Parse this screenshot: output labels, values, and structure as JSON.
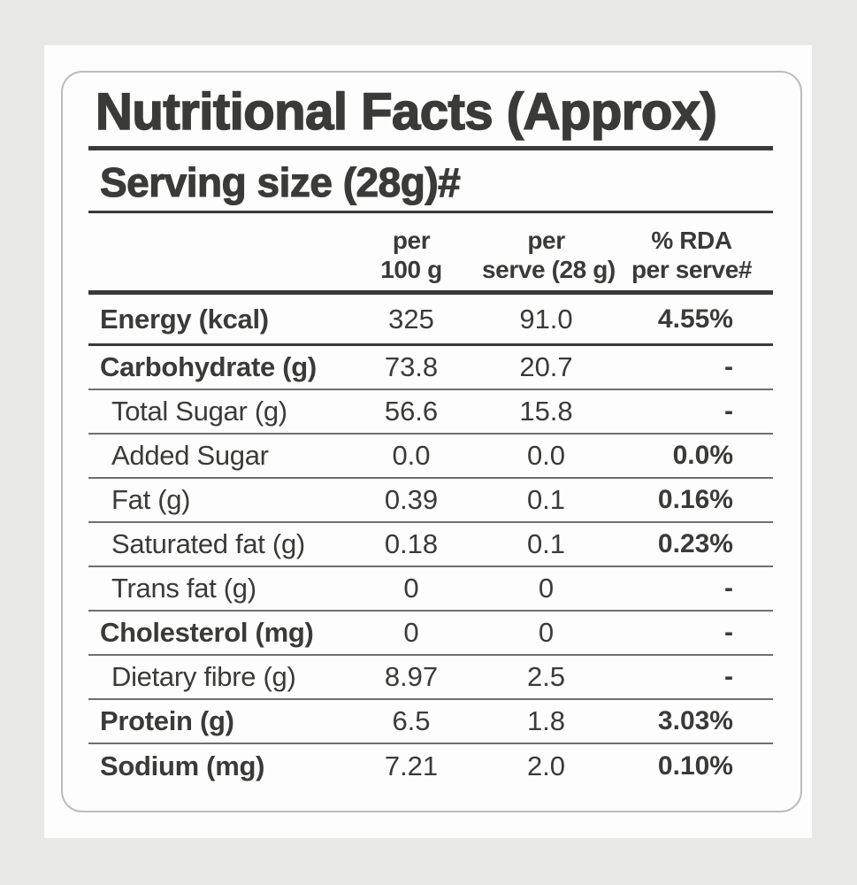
{
  "colors": {
    "page_background": "#e8e8e7",
    "sheet_background": "#fdfdfd",
    "card_border": "#bcbcbc",
    "text": "#3a3a38",
    "rule_dark": "#3a3a3a",
    "rule_thin": "#6f6f6f"
  },
  "label": {
    "title": "Nutritional Facts (Approx)",
    "serving_size": "Serving size (28g)#",
    "columns": {
      "per_100g": {
        "line1": "per",
        "line2": "100 g"
      },
      "per_serve": {
        "line1": "per",
        "line2": "serve (28 g)"
      },
      "rda": {
        "line1": "% RDA",
        "line2": "per serve#"
      }
    },
    "rows": [
      {
        "label": "Energy (kcal)",
        "per_100g": "325",
        "per_serve": "91.0",
        "rda_per_serve": "4.55%",
        "bold": true,
        "indent": false,
        "major": true
      },
      {
        "label": "Carbohydrate (g)",
        "per_100g": "73.8",
        "per_serve": "20.7",
        "rda_per_serve": "-",
        "bold": true,
        "indent": false,
        "major": false
      },
      {
        "label": "Total Sugar (g)",
        "per_100g": "56.6",
        "per_serve": "15.8",
        "rda_per_serve": "-",
        "bold": false,
        "indent": true,
        "major": false
      },
      {
        "label": "Added Sugar",
        "per_100g": "0.0",
        "per_serve": "0.0",
        "rda_per_serve": "0.0%",
        "bold": false,
        "indent": true,
        "major": false
      },
      {
        "label": "Fat (g)",
        "per_100g": "0.39",
        "per_serve": "0.1",
        "rda_per_serve": "0.16%",
        "bold": false,
        "indent": true,
        "major": false
      },
      {
        "label": "Saturated fat (g)",
        "per_100g": "0.18",
        "per_serve": "0.1",
        "rda_per_serve": "0.23%",
        "bold": false,
        "indent": true,
        "major": false
      },
      {
        "label": "Trans fat (g)",
        "per_100g": "0",
        "per_serve": "0",
        "rda_per_serve": "-",
        "bold": false,
        "indent": true,
        "major": false
      },
      {
        "label": "Cholesterol (mg)",
        "per_100g": "0",
        "per_serve": "0",
        "rda_per_serve": "-",
        "bold": true,
        "indent": false,
        "major": false
      },
      {
        "label": "Dietary fibre (g)",
        "per_100g": "8.97",
        "per_serve": "2.5",
        "rda_per_serve": "-",
        "bold": false,
        "indent": true,
        "major": false
      },
      {
        "label": "Protein (g)",
        "per_100g": "6.5",
        "per_serve": "1.8",
        "rda_per_serve": "3.03%",
        "bold": true,
        "indent": false,
        "major": false
      },
      {
        "label": "Sodium (mg)",
        "per_100g": "7.21",
        "per_serve": "2.0",
        "rda_per_serve": "0.10%",
        "bold": true,
        "indent": false,
        "major": false
      }
    ]
  }
}
